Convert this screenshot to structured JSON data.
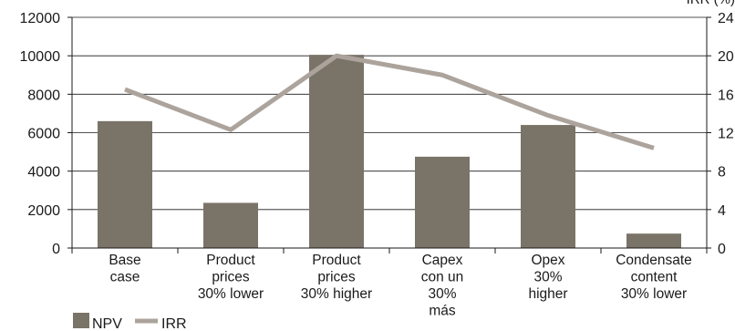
{
  "chart_data": {
    "type": "bar",
    "categories": [
      [
        "Base",
        "case"
      ],
      [
        "Product",
        "prices",
        "30% lower"
      ],
      [
        "Product",
        "prices",
        "30% higher"
      ],
      [
        "Capex",
        "con un",
        "30%",
        "más"
      ],
      [
        "Opex",
        "30%",
        "higher"
      ],
      [
        "Condensate",
        "content",
        "30% lower"
      ]
    ],
    "series": [
      {
        "name": "NPV",
        "type": "bar",
        "axis": "left",
        "values": [
          6600,
          2350,
          10050,
          4750,
          6400,
          750
        ]
      },
      {
        "name": "IRR",
        "type": "line",
        "axis": "right",
        "values": [
          16.5,
          12.3,
          20.0,
          18.0,
          13.8,
          10.4
        ]
      }
    ],
    "y_left": {
      "min": 0,
      "max": 12000,
      "ticks": [
        0,
        2000,
        4000,
        6000,
        8000,
        10000,
        12000
      ]
    },
    "y_right": {
      "min": 0,
      "max": 24,
      "ticks": [
        0,
        4,
        8,
        12,
        16,
        20,
        24
      ],
      "label": "IRR (%)"
    },
    "grid": true,
    "legend_position": "bottom-left",
    "colors": {
      "bar": "#7a7368",
      "line": "#aca49c",
      "grid": "#1a1a1a",
      "axis": "#1a1a1a"
    }
  }
}
